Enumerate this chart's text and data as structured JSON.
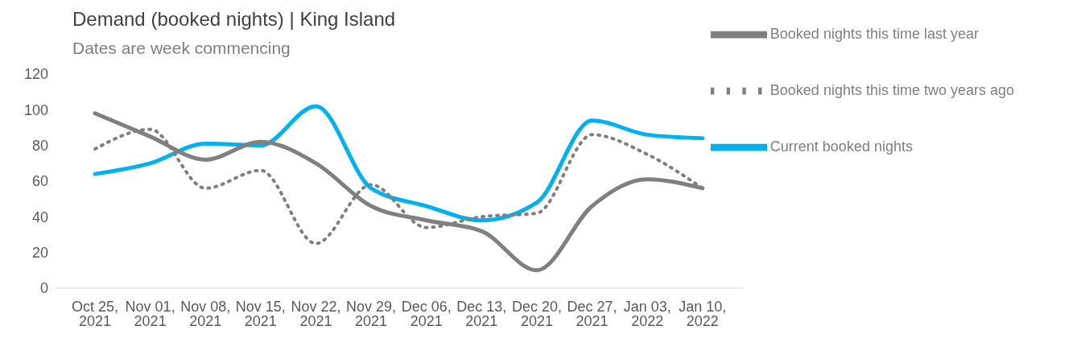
{
  "chart_data": {
    "type": "line",
    "title": "Demand (booked nights) | King Island",
    "subtitle": "Dates are week commencing",
    "categories": [
      "Oct 25, 2021",
      "Nov 01, 2021",
      "Nov 08, 2021",
      "Nov 15, 2021",
      "Nov 22, 2021",
      "Nov 29, 2021",
      "Dec 06, 2021",
      "Dec 13, 2021",
      "Dec 20, 2021",
      "Dec 27, 2021",
      "Jan 03, 2022",
      "Jan 10, 2022"
    ],
    "series": [
      {
        "name": "Current booked nights",
        "color": "#00b0f0",
        "line_style": "solid",
        "values": [
          64,
          70,
          81,
          80,
          102,
          56,
          46,
          38,
          48,
          94,
          86,
          84
        ]
      },
      {
        "name": "Booked nights this time last year",
        "color": "#7f7f7f",
        "line_style": "solid",
        "values": [
          98,
          85,
          72,
          82,
          70,
          46,
          38,
          32,
          10,
          46,
          61,
          56
        ]
      },
      {
        "name": "Booked nights this time two years ago",
        "color": "#7f7f7f",
        "line_style": "dotted",
        "values": [
          78,
          89,
          56,
          66,
          25,
          58,
          34,
          40,
          42,
          86,
          75,
          56
        ]
      }
    ],
    "ylim": [
      0,
      120
    ],
    "yticks": [
      0,
      20,
      40,
      60,
      80,
      100,
      120
    ],
    "grid": false,
    "legend": "top right",
    "marker": "none"
  }
}
